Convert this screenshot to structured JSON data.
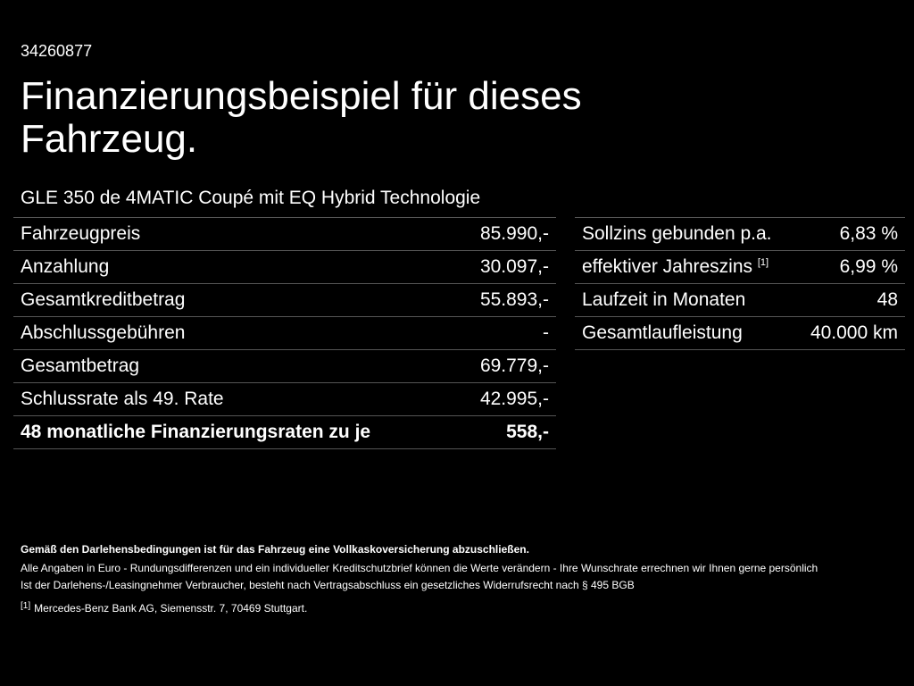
{
  "ref_id": "34260877",
  "title_line1": "Finanzierungsbeispiel für dieses",
  "title_line2": "Fahrzeug.",
  "model": "GLE 350 de 4MATIC Coupé mit EQ Hybrid Technologie",
  "left_rows": [
    {
      "label": "Fahrzeugpreis",
      "value": "85.990,-"
    },
    {
      "label": "Anzahlung",
      "value": "30.097,-"
    },
    {
      "label": "Gesamtkreditbetrag",
      "value": "55.893,-"
    },
    {
      "label": "Abschlussgebühren",
      "value": "-"
    },
    {
      "label": "Gesamtbetrag",
      "value": "69.779,-"
    },
    {
      "label": "Schlussrate als 49. Rate",
      "value": "42.995,-"
    },
    {
      "label": "48 monatliche Finanzierungsraten zu je",
      "value": "558,-"
    }
  ],
  "right_rows": [
    {
      "label": "Sollzins gebunden p.a.",
      "value": "6,83 %"
    },
    {
      "label": "effektiver Jahreszins",
      "sup": "[1]",
      "value": "6,99 %"
    },
    {
      "label": "Laufzeit in Monaten",
      "value": "48"
    },
    {
      "label": "Gesamtlaufleistung",
      "value": "40.000 km"
    }
  ],
  "notes": {
    "bold": "Gemäß den Darlehensbedingungen ist für das Fahrzeug eine Vollkaskoversicherung abzuschließen.",
    "line1": "Alle Angaben in Euro - Rundungsdifferenzen und ein individueller Kreditschutzbrief können die Werte verändern - Ihre Wunschrate errechnen wir Ihnen gerne persönlich",
    "line2": "Ist der Darlehens-/Leasingnehmer Verbraucher, besteht nach Vertragsabschluss ein gesetzliches Widerrufsrecht nach § 495 BGB",
    "footnote_mark": "[1]",
    "footnote_text": "Mercedes-Benz Bank AG, Siemensstr. 7, 70469 Stuttgart."
  }
}
